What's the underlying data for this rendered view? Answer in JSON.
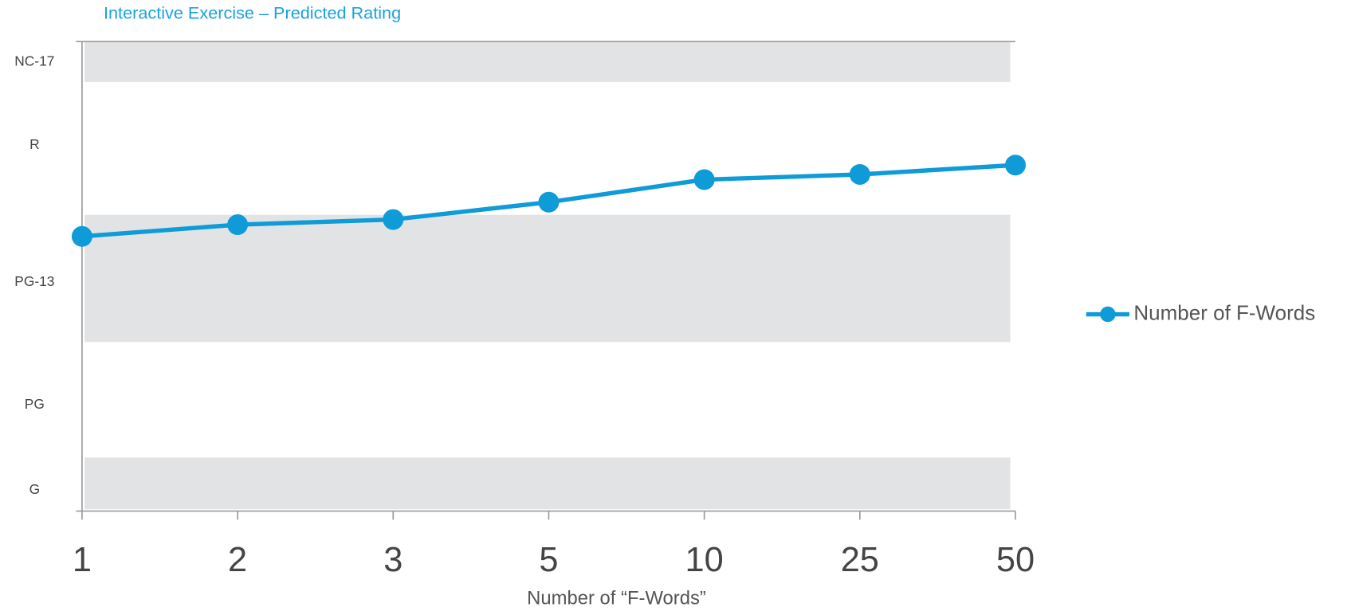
{
  "chart_data": {
    "type": "line",
    "title": "Interactive Exercise – Predicted Rating",
    "x_label": "Number of “F-Words”",
    "categories": [
      "1",
      "2",
      "3",
      "5",
      "10",
      "25",
      "50"
    ],
    "series": [
      {
        "name": "Number of F-Words",
        "color": "#0f9bd7",
        "values": [
          58.5,
          61.0,
          62.1,
          65.8,
          70.6,
          71.7,
          73.7
        ]
      }
    ],
    "ylim": [
      0,
      100
    ],
    "yticks": [
      {
        "value": 4.4,
        "label": "G"
      },
      {
        "value": 22.6,
        "label": "PG"
      },
      {
        "value": 48.7,
        "label": "PG-13"
      },
      {
        "value": 77.9,
        "label": "R"
      },
      {
        "value": 95.6,
        "label": "NC-17"
      }
    ],
    "bands": [
      {
        "from": 0.4,
        "to": 11.4
      },
      {
        "from": 36.0,
        "to": 63.1
      },
      {
        "from": 91.4,
        "to": 100
      }
    ],
    "band_color": "#e2e3e5",
    "legend": "right"
  }
}
